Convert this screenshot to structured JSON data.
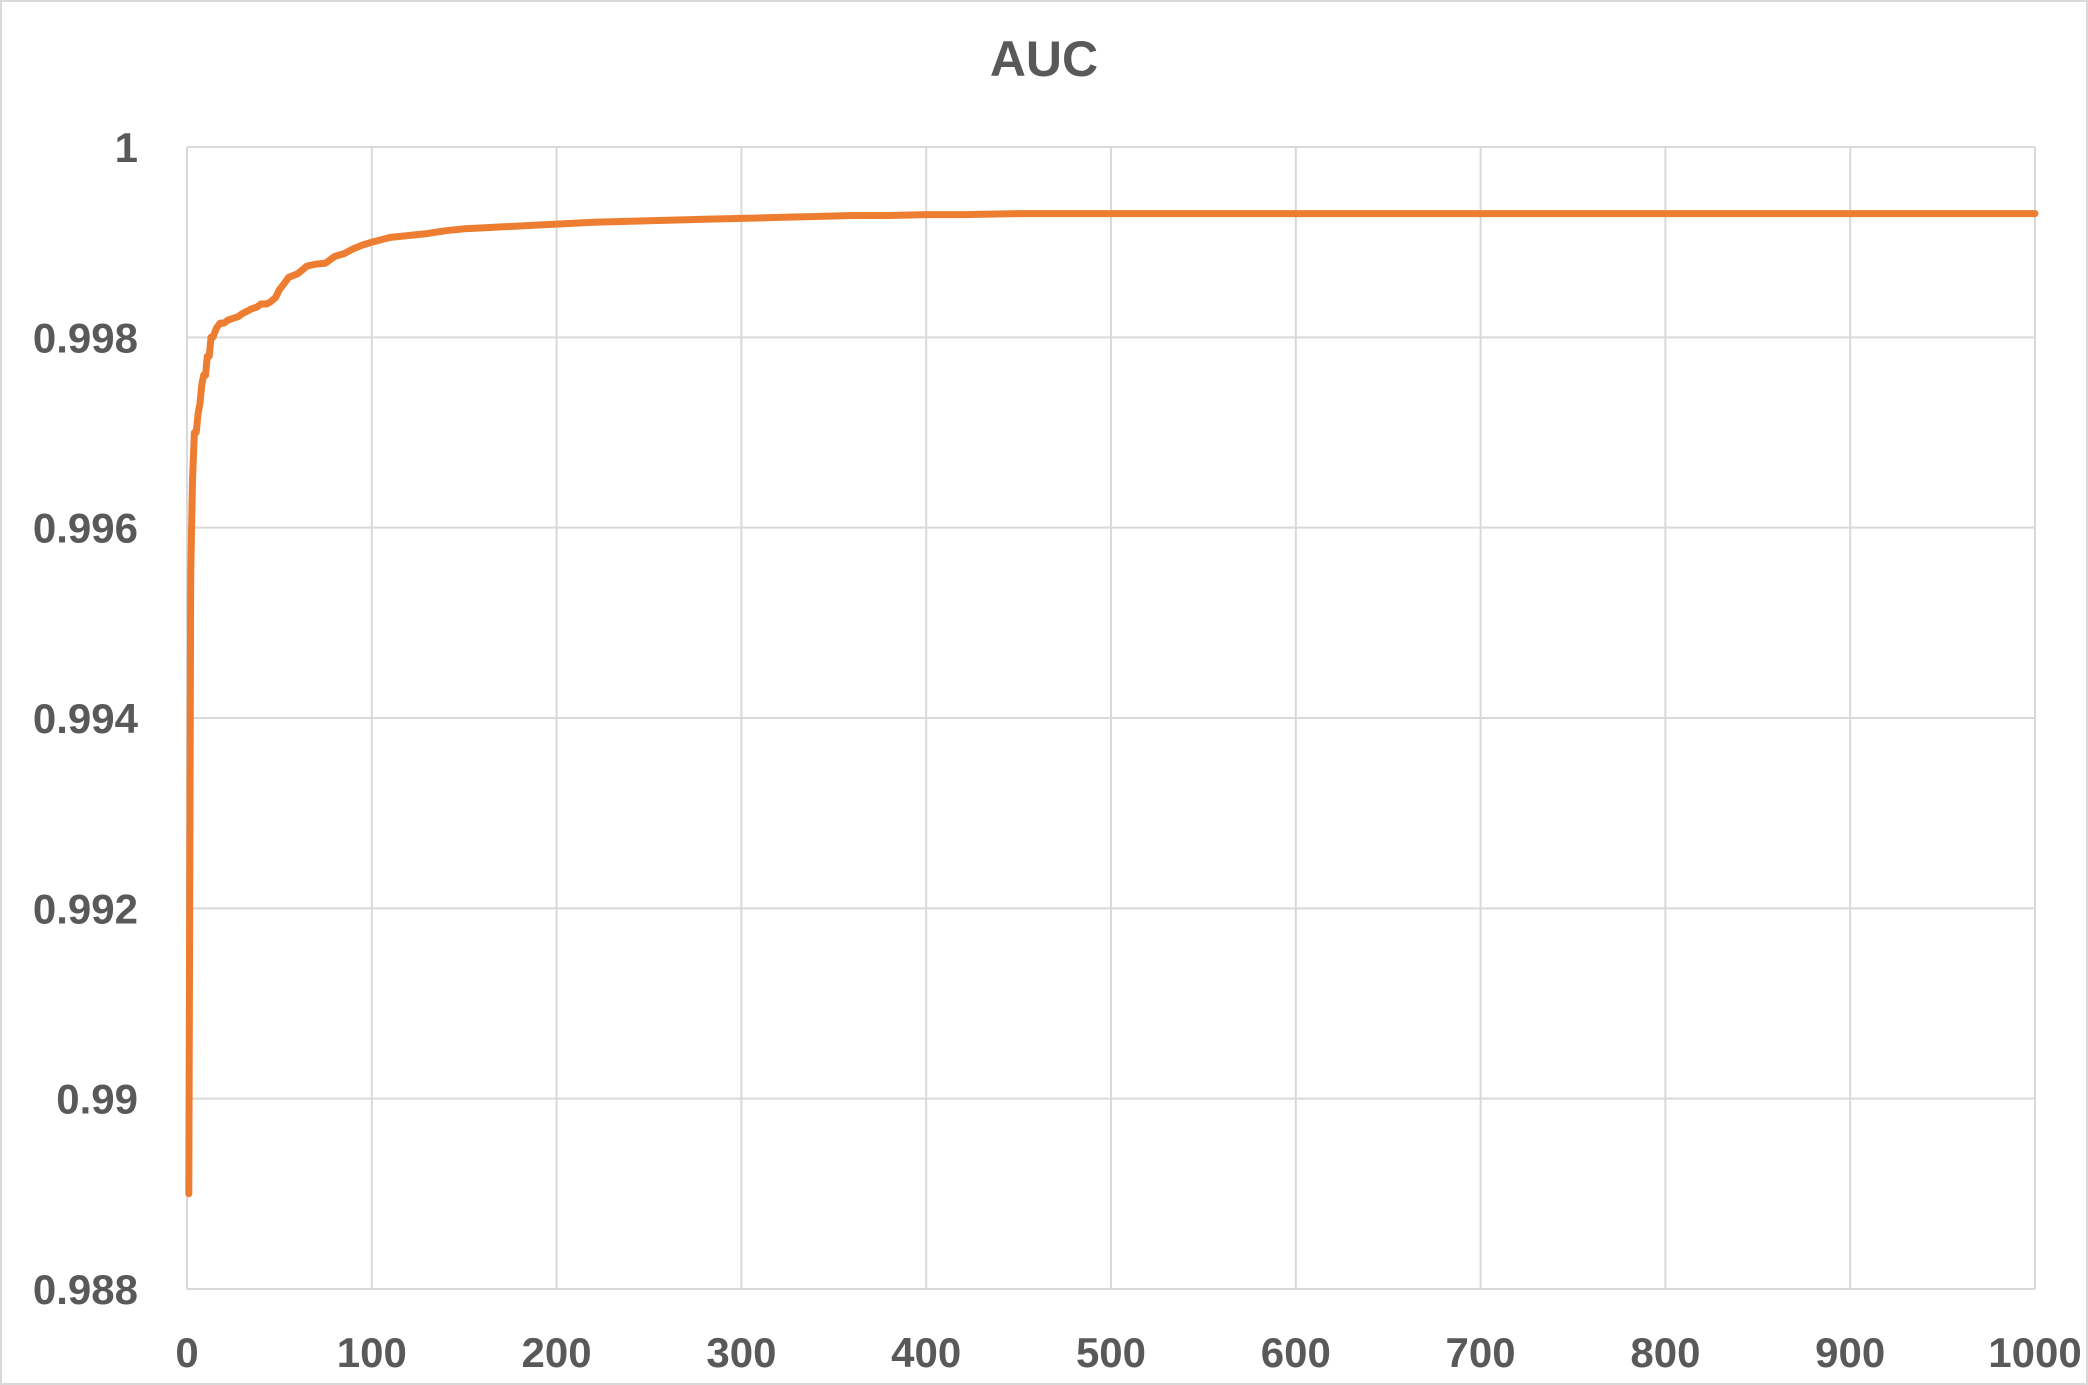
{
  "chart_data": {
    "type": "line",
    "title": "AUC",
    "xlabel": "",
    "ylabel": "",
    "xlim": [
      0,
      1000
    ],
    "ylim": [
      0.988,
      1
    ],
    "x_ticks": [
      0,
      100,
      200,
      300,
      400,
      500,
      600,
      700,
      800,
      900,
      1000
    ],
    "x_tick_labels": [
      "0",
      "100",
      "200",
      "300",
      "400",
      "500",
      "600",
      "700",
      "800",
      "900",
      "1000"
    ],
    "y_ticks": [
      0.988,
      0.99,
      0.992,
      0.994,
      0.996,
      0.998,
      1
    ],
    "y_tick_labels": [
      "0.988",
      "0.99",
      "0.992",
      "0.994",
      "0.996",
      "0.998",
      "1"
    ],
    "grid": true,
    "legend": "none",
    "colors": {
      "line": "#ED7D31",
      "grid": "#d9d9d9",
      "text": "#595959"
    },
    "series": [
      {
        "x": [
          1,
          2,
          3,
          4,
          5,
          6,
          7,
          8,
          9,
          10,
          11,
          12,
          13,
          14,
          15,
          16,
          18,
          20,
          22,
          25,
          28,
          30,
          33,
          35,
          38,
          40,
          43,
          45,
          48,
          50,
          52,
          55,
          60,
          65,
          70,
          75,
          80,
          85,
          90,
          95,
          100,
          110,
          120,
          130,
          140,
          150,
          160,
          170,
          180,
          190,
          200,
          220,
          240,
          260,
          280,
          300,
          320,
          340,
          360,
          380,
          400,
          420,
          450,
          500,
          600,
          700,
          800,
          900,
          1000
        ],
        "y": [
          0.989,
          0.9955,
          0.9965,
          0.997,
          0.997,
          0.9972,
          0.9973,
          0.9975,
          0.9976,
          0.9976,
          0.9978,
          0.9978,
          0.998,
          0.998,
          0.99805,
          0.9981,
          0.99815,
          0.99815,
          0.99818,
          0.9982,
          0.99822,
          0.99825,
          0.99828,
          0.9983,
          0.99832,
          0.99835,
          0.99835,
          0.99837,
          0.99842,
          0.9985,
          0.99855,
          0.99863,
          0.99867,
          0.99875,
          0.99877,
          0.99878,
          0.99885,
          0.99888,
          0.99893,
          0.99897,
          0.999,
          0.99905,
          0.99907,
          0.99909,
          0.99912,
          0.99914,
          0.99915,
          0.99916,
          0.99917,
          0.99918,
          0.99919,
          0.99921,
          0.99922,
          0.99923,
          0.99924,
          0.99925,
          0.99926,
          0.99927,
          0.99928,
          0.99928,
          0.99929,
          0.99929,
          0.9993,
          0.9993,
          0.9993,
          0.9993,
          0.9993,
          0.9993,
          0.9993
        ]
      }
    ]
  }
}
